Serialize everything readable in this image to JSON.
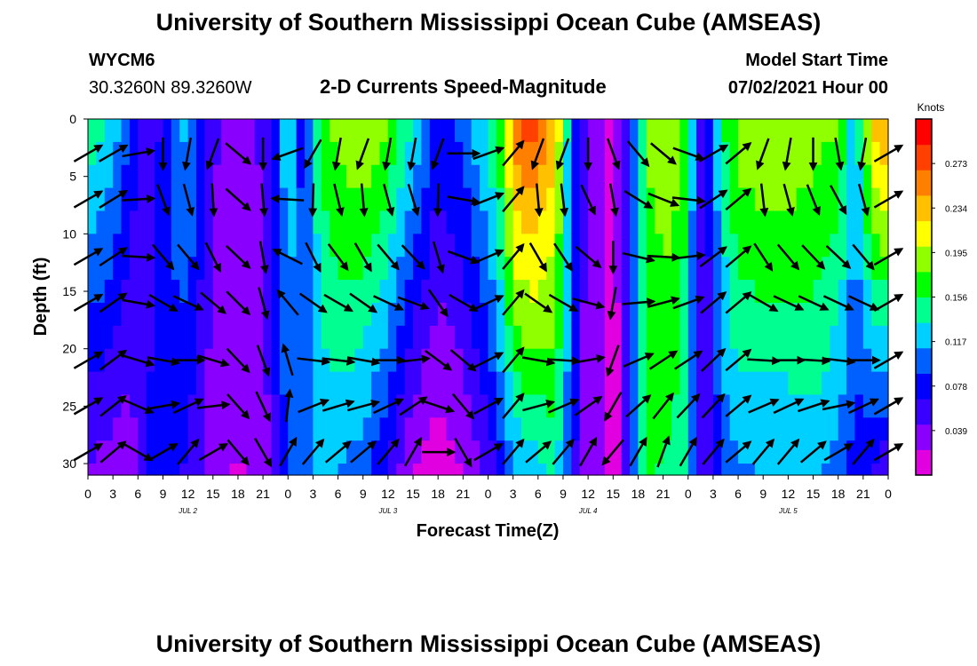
{
  "header": {
    "title": "University of Southern Mississippi Ocean Cube (AMSEAS)",
    "station_id": "WYCM6",
    "location": "30.3260N  89.3260W",
    "subtitle": "2-D Currents Speed-Magnitude",
    "start_label": "Model Start Time",
    "start_value": "07/02/2021 Hour 00"
  },
  "footer": {
    "title": "University of Southern Mississippi Ocean Cube (AMSEAS)"
  },
  "colors": {
    "scale": [
      "#e000e0",
      "#8a00ff",
      "#3a00ff",
      "#0000ff",
      "#0060ff",
      "#00d0ff",
      "#00ff90",
      "#00ff00",
      "#90ff00",
      "#ffff00",
      "#ffc000",
      "#ff8000",
      "#ff4000",
      "#ff0000"
    ]
  },
  "chart_data": {
    "type": "heatmap",
    "title": "2-D Currents Speed-Magnitude",
    "xlabel": "Forecast Time(Z)",
    "ylabel": "Depth (ft)",
    "x_range": [
      0,
      96
    ],
    "ylim": [
      0,
      31
    ],
    "y_inverted": true,
    "x_tick_labels": [
      "0",
      "3",
      "6",
      "9",
      "12",
      "15",
      "18",
      "21",
      "0",
      "3",
      "6",
      "9",
      "12",
      "15",
      "18",
      "21",
      "0",
      "3",
      "6",
      "9",
      "12",
      "15",
      "18",
      "21",
      "0",
      "3",
      "6",
      "9",
      "12",
      "15",
      "18",
      "21",
      "0"
    ],
    "day_labels": [
      {
        "hour": 12,
        "label": "JUL 2"
      },
      {
        "hour": 36,
        "label": "JUL 3"
      },
      {
        "hour": 60,
        "label": "JUL 4"
      },
      {
        "hour": 84,
        "label": "JUL 5"
      }
    ],
    "y_ticks": [
      0,
      5,
      10,
      15,
      20,
      25,
      30
    ],
    "colorbar": {
      "units": "Knots",
      "range": [
        0.0,
        0.312
      ],
      "tick_values": [
        0.039,
        0.078,
        0.117,
        0.156,
        0.195,
        0.234,
        0.273
      ],
      "tick_labels": [
        "0.039",
        "0.078",
        "0.117",
        "0.156",
        "0.195",
        "0.234",
        "0.273"
      ]
    },
    "depth_rows_ft": [
      0,
      2,
      4,
      6,
      8,
      10,
      12,
      14,
      16,
      18,
      20,
      22,
      24,
      26,
      28,
      30
    ],
    "speed_profile_knots": {
      "hours": [
        0,
        3,
        5,
        6,
        8,
        9,
        12,
        15,
        18,
        21,
        23,
        24,
        26,
        27,
        29,
        30,
        33,
        36,
        39,
        42,
        45,
        48,
        50,
        51,
        53,
        56,
        58,
        59,
        61,
        62,
        63,
        64,
        65,
        66,
        67,
        70,
        72,
        73,
        74,
        76,
        78,
        80,
        84,
        87,
        90,
        92,
        94,
        96
      ],
      "surface": [
        0.15,
        0.13,
        0.09,
        0.06,
        0.05,
        0.08,
        0.12,
        0.05,
        0.03,
        0.05,
        0.1,
        0.14,
        0.07,
        0.13,
        0.18,
        0.19,
        0.2,
        0.18,
        0.13,
        0.08,
        0.1,
        0.14,
        0.19,
        0.26,
        0.28,
        0.24,
        0.1,
        0.06,
        0.03,
        0.02,
        0.01,
        0.04,
        0.08,
        0.13,
        0.18,
        0.2,
        0.16,
        0.07,
        0.05,
        0.15,
        0.19,
        0.2,
        0.2,
        0.19,
        0.18,
        0.12,
        0.22,
        0.26
      ],
      "bottom": [
        0.04,
        0.03,
        0.03,
        0.05,
        0.08,
        0.09,
        0.06,
        0.03,
        0.02,
        0.03,
        0.07,
        0.09,
        0.1,
        0.11,
        0.12,
        0.11,
        0.1,
        0.06,
        0.02,
        0.01,
        0.02,
        0.05,
        0.09,
        0.11,
        0.12,
        0.14,
        0.09,
        0.04,
        0.03,
        0.02,
        0.01,
        0.03,
        0.08,
        0.13,
        0.16,
        0.15,
        0.13,
        0.07,
        0.04,
        0.09,
        0.11,
        0.11,
        0.11,
        0.12,
        0.1,
        0.08,
        0.06,
        0.05
      ]
    },
    "vector_hours": [
      0,
      3,
      6,
      9,
      12,
      15,
      18,
      21,
      24,
      27,
      30,
      33,
      36,
      39,
      42,
      45,
      48,
      51,
      54,
      57,
      60,
      63,
      66,
      69,
      72,
      75,
      78,
      81,
      84,
      87,
      90,
      93,
      96
    ],
    "vector_depths_ft": [
      3,
      7,
      12,
      16,
      21,
      25,
      29
    ],
    "vector_direction_deg": {
      "surface": [
        60,
        60,
        80,
        180,
        190,
        200,
        130,
        180,
        250,
        210,
        190,
        200,
        190,
        190,
        200,
        90,
        70,
        40,
        200,
        200,
        180,
        160,
        140,
        130,
        110,
        60,
        50,
        200,
        190,
        180,
        170,
        190,
        60
      ],
      "bottom": [
        60,
        50,
        120,
        60,
        40,
        60,
        140,
        150,
        30,
        40,
        50,
        50,
        40,
        30,
        90,
        150,
        60,
        40,
        50,
        40,
        30,
        220,
        30,
        20,
        30,
        40,
        50,
        40,
        40,
        50,
        60,
        40,
        60
      ]
    }
  }
}
